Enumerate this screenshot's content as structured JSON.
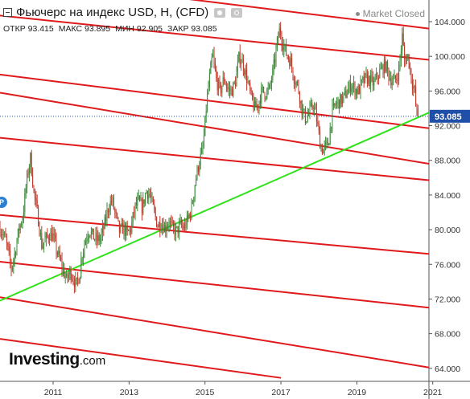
{
  "header": {
    "title": "Фьючерс на индекс USD, Н, (CFD)",
    "market_status": "Market Closed",
    "ohlc": {
      "open": "ОТКР 93.415",
      "high": "МАКС 93.895",
      "low": "МИН 92.905",
      "close": "ЗАКР 93.085"
    }
  },
  "logo": {
    "name": "Investing",
    "domain": ".com"
  },
  "marker": {
    "label": "P"
  },
  "icons": [
    "camera-icon",
    "gear-icon",
    "collapse-icon"
  ],
  "chart_data": {
    "type": "line",
    "style": "candlestick",
    "x_ticks": [
      "2011",
      "2013",
      "2015",
      "2017",
      "2019",
      "2021"
    ],
    "y_ticks": [
      "64.000",
      "68.000",
      "72.000",
      "76.000",
      "80.000",
      "84.000",
      "88.000",
      "92.000",
      "96.000",
      "100.000",
      "104.000"
    ],
    "ylim": [
      62.5,
      106.5
    ],
    "xlim": [
      2009.6,
      2020.9
    ],
    "last_price": "93.085",
    "last_price_value": 93.085,
    "series": [
      {
        "values": [
          [
            2009.6,
            80.2
          ],
          [
            2009.75,
            78.8
          ],
          [
            2009.9,
            75.5
          ],
          [
            2010.0,
            77.5
          ],
          [
            2010.1,
            80.1
          ],
          [
            2010.2,
            81.5
          ],
          [
            2010.3,
            85.5
          ],
          [
            2010.4,
            88.3
          ],
          [
            2010.5,
            84.0
          ],
          [
            2010.6,
            81.5
          ],
          [
            2010.7,
            78.2
          ],
          [
            2010.8,
            78.8
          ],
          [
            2010.9,
            79.5
          ],
          [
            2011.0,
            79.2
          ],
          [
            2011.1,
            77.5
          ],
          [
            2011.25,
            75.5
          ],
          [
            2011.35,
            74.2
          ],
          [
            2011.45,
            75.2
          ],
          [
            2011.55,
            74.2
          ],
          [
            2011.6,
            73.5
          ],
          [
            2011.7,
            74.8
          ],
          [
            2011.75,
            77.0
          ],
          [
            2011.85,
            78.8
          ],
          [
            2011.95,
            80.0
          ],
          [
            2012.05,
            79.2
          ],
          [
            2012.15,
            78.8
          ],
          [
            2012.25,
            79.0
          ],
          [
            2012.35,
            80.5
          ],
          [
            2012.45,
            82.5
          ],
          [
            2012.55,
            83.5
          ],
          [
            2012.65,
            81.5
          ],
          [
            2012.75,
            79.8
          ],
          [
            2012.85,
            80.2
          ],
          [
            2012.95,
            79.5
          ],
          [
            2013.05,
            80.1
          ],
          [
            2013.15,
            82.5
          ],
          [
            2013.25,
            83.2
          ],
          [
            2013.35,
            82.5
          ],
          [
            2013.45,
            84.5
          ],
          [
            2013.55,
            84.0
          ],
          [
            2013.65,
            82.2
          ],
          [
            2013.75,
            80.5
          ],
          [
            2013.85,
            80.8
          ],
          [
            2013.95,
            80.2
          ],
          [
            2014.05,
            81.0
          ],
          [
            2014.15,
            80.0
          ],
          [
            2014.25,
            79.8
          ],
          [
            2014.35,
            80.5
          ],
          [
            2014.45,
            80.2
          ],
          [
            2014.55,
            81.2
          ],
          [
            2014.65,
            82.5
          ],
          [
            2014.75,
            85.8
          ],
          [
            2014.85,
            87.8
          ],
          [
            2014.95,
            89.5
          ],
          [
            2015.05,
            95.0
          ],
          [
            2015.15,
            98.5
          ],
          [
            2015.2,
            100.2
          ],
          [
            2015.3,
            97.2
          ],
          [
            2015.4,
            96.0
          ],
          [
            2015.5,
            97.5
          ],
          [
            2015.6,
            96.2
          ],
          [
            2015.7,
            96.0
          ],
          [
            2015.8,
            97.0
          ],
          [
            2015.9,
            100.0
          ],
          [
            2016.0,
            99.2
          ],
          [
            2016.1,
            97.5
          ],
          [
            2016.2,
            95.5
          ],
          [
            2016.3,
            94.0
          ],
          [
            2016.4,
            94.5
          ],
          [
            2016.5,
            96.0
          ],
          [
            2016.6,
            95.8
          ],
          [
            2016.7,
            96.2
          ],
          [
            2016.8,
            98.5
          ],
          [
            2016.9,
            101.5
          ],
          [
            2016.97,
            103.2
          ],
          [
            2017.05,
            101.5
          ],
          [
            2017.15,
            100.2
          ],
          [
            2017.25,
            99.5
          ],
          [
            2017.35,
            97.5
          ],
          [
            2017.45,
            96.5
          ],
          [
            2017.55,
            94.0
          ],
          [
            2017.65,
            92.8
          ],
          [
            2017.75,
            93.5
          ],
          [
            2017.85,
            94.5
          ],
          [
            2017.95,
            92.5
          ],
          [
            2018.05,
            89.5
          ],
          [
            2018.12,
            89.2
          ],
          [
            2018.25,
            90.0
          ],
          [
            2018.35,
            93.5
          ],
          [
            2018.45,
            94.5
          ],
          [
            2018.55,
            94.8
          ],
          [
            2018.65,
            95.2
          ],
          [
            2018.75,
            96.0
          ],
          [
            2018.85,
            96.8
          ],
          [
            2018.95,
            96.2
          ],
          [
            2019.05,
            96.0
          ],
          [
            2019.15,
            97.0
          ],
          [
            2019.25,
            97.5
          ],
          [
            2019.35,
            97.2
          ],
          [
            2019.45,
            96.8
          ],
          [
            2019.55,
            97.8
          ],
          [
            2019.65,
            98.5
          ],
          [
            2019.75,
            99.0
          ],
          [
            2019.85,
            97.8
          ],
          [
            2019.95,
            97.0
          ],
          [
            2020.05,
            97.5
          ],
          [
            2020.12,
            98.8
          ],
          [
            2020.2,
            102.5
          ],
          [
            2020.25,
            99.5
          ],
          [
            2020.35,
            100.0
          ],
          [
            2020.45,
            97.2
          ],
          [
            2020.52,
            96.0
          ],
          [
            2020.57,
            93.5
          ],
          [
            2020.62,
            93.085
          ]
        ]
      }
    ],
    "trendlines": {
      "green": [
        [
          2009.6,
          71.8
        ],
        [
          2020.9,
          93.5
        ]
      ],
      "red": [
        [
          [
            2011.4,
            108.3
          ],
          [
            2020.9,
            103.2
          ]
        ],
        [
          [
            2009.6,
            104.7
          ],
          [
            2020.9,
            99.6
          ]
        ],
        [
          [
            2009.6,
            97.9
          ],
          [
            2020.9,
            91.7
          ]
        ],
        [
          [
            2009.6,
            95.8
          ],
          [
            2020.9,
            87.6
          ]
        ],
        [
          [
            2009.6,
            90.6
          ],
          [
            2020.9,
            85.7
          ]
        ],
        [
          [
            2009.6,
            81.7
          ],
          [
            2020.9,
            77.2
          ]
        ],
        [
          [
            2009.6,
            76.3
          ],
          [
            2020.9,
            71.0
          ]
        ],
        [
          [
            2009.6,
            72.2
          ],
          [
            2020.9,
            64.1
          ]
        ],
        [
          [
            2009.6,
            67.4
          ],
          [
            2017.0,
            62.9
          ]
        ]
      ]
    }
  }
}
